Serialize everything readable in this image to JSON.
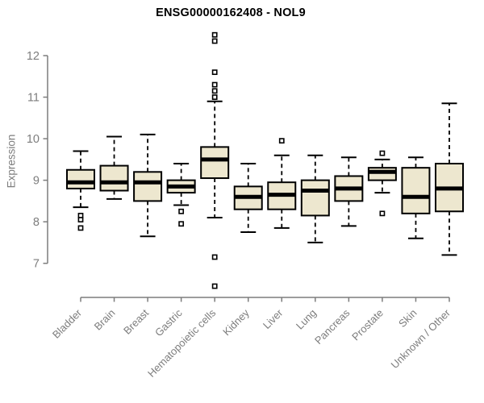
{
  "chart_data": {
    "type": "box",
    "title": "ENSG00000162408 - NOL9",
    "xlabel": "",
    "ylabel": "Expression",
    "ylim": [
      7,
      12
    ],
    "yticks": [
      7,
      8,
      9,
      10,
      11,
      12
    ],
    "grid": false,
    "legend": "none",
    "categories": [
      "Bladder",
      "Brain",
      "Breast",
      "Gastric",
      "Hematopoietic cells",
      "Kidney",
      "Liver",
      "Lung",
      "Pancreas",
      "Prostate",
      "Skin",
      "Unknown / Other"
    ],
    "series": [
      {
        "name": "Bladder",
        "whisker_low": 8.35,
        "q1": 8.8,
        "median": 8.95,
        "q3": 9.25,
        "whisker_high": 9.7,
        "outliers": [
          8.15,
          8.05,
          7.85
        ]
      },
      {
        "name": "Brain",
        "whisker_low": 8.55,
        "q1": 8.75,
        "median": 8.95,
        "q3": 9.35,
        "whisker_high": 10.05,
        "outliers": []
      },
      {
        "name": "Breast",
        "whisker_low": 7.65,
        "q1": 8.5,
        "median": 8.95,
        "q3": 9.2,
        "whisker_high": 10.1,
        "outliers": []
      },
      {
        "name": "Gastric",
        "whisker_low": 8.4,
        "q1": 8.7,
        "median": 8.85,
        "q3": 9.0,
        "whisker_high": 9.4,
        "outliers": [
          8.25,
          7.95
        ]
      },
      {
        "name": "Hematopoietic cells",
        "whisker_low": 8.1,
        "q1": 9.05,
        "median": 9.5,
        "q3": 9.8,
        "whisker_high": 10.9,
        "outliers": [
          12.5,
          12.35,
          11.6,
          11.3,
          11.15,
          11.0,
          7.15,
          6.45
        ]
      },
      {
        "name": "Kidney",
        "whisker_low": 7.75,
        "q1": 8.3,
        "median": 8.6,
        "q3": 8.85,
        "whisker_high": 9.4,
        "outliers": []
      },
      {
        "name": "Liver",
        "whisker_low": 7.85,
        "q1": 8.3,
        "median": 8.65,
        "q3": 8.95,
        "whisker_high": 9.6,
        "outliers": [
          9.95
        ]
      },
      {
        "name": "Lung",
        "whisker_low": 7.5,
        "q1": 8.15,
        "median": 8.75,
        "q3": 9.0,
        "whisker_high": 9.6,
        "outliers": []
      },
      {
        "name": "Pancreas",
        "whisker_low": 7.9,
        "q1": 8.5,
        "median": 8.8,
        "q3": 9.1,
        "whisker_high": 9.55,
        "outliers": []
      },
      {
        "name": "Prostate",
        "whisker_low": 8.7,
        "q1": 9.0,
        "median": 9.2,
        "q3": 9.3,
        "whisker_high": 9.5,
        "outliers": [
          9.65,
          8.2
        ]
      },
      {
        "name": "Skin",
        "whisker_low": 7.6,
        "q1": 8.2,
        "median": 8.6,
        "q3": 9.3,
        "whisker_high": 9.55,
        "outliers": []
      },
      {
        "name": "Unknown / Other",
        "whisker_low": 7.2,
        "q1": 8.25,
        "median": 8.8,
        "q3": 9.4,
        "whisker_high": 10.85,
        "outliers": []
      }
    ],
    "colors": {
      "background": "#ffffff",
      "box_fill": "#ede7cf",
      "box_border": "#000000",
      "median": "#000000",
      "whisker": "#000000",
      "outlier_border": "#000000",
      "outlier_fill": "#ffffff",
      "axis": "#7d7d7d",
      "tick_label": "#7d7d7d",
      "title": "#000000"
    }
  }
}
